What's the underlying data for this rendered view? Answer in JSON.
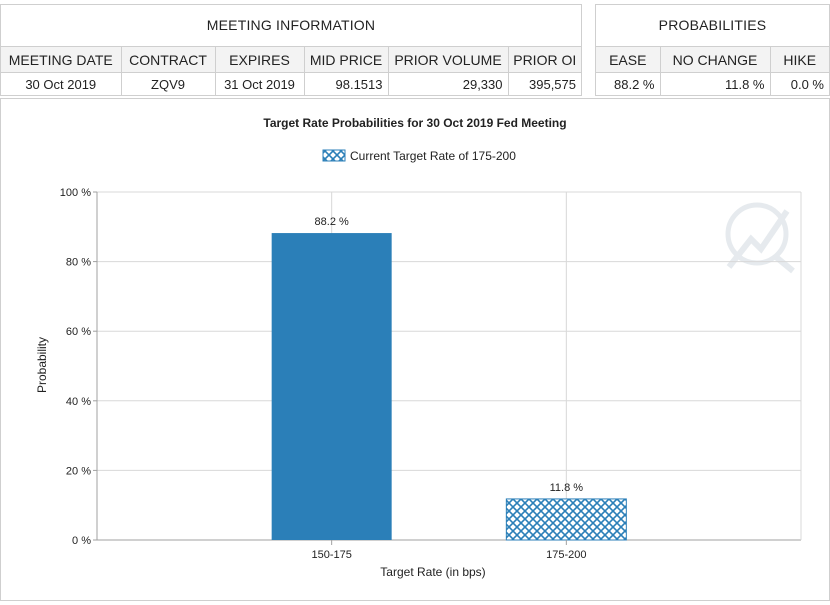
{
  "meeting_info": {
    "title": "MEETING INFORMATION",
    "headers": [
      "MEETING DATE",
      "CONTRACT",
      "EXPIRES",
      "MID PRICE",
      "PRIOR VOLUME",
      "PRIOR OI"
    ],
    "row": [
      "30 Oct 2019",
      "ZQV9",
      "31 Oct 2019",
      "98.1513",
      "29,330",
      "395,575"
    ]
  },
  "probabilities": {
    "title": "PROBABILITIES",
    "headers": [
      "EASE",
      "NO CHANGE",
      "HIKE"
    ],
    "row": [
      "88.2 %",
      "11.8 %",
      "0.0 %"
    ]
  },
  "colors": {
    "bar_fill": "#2b7fb8",
    "hatch_line": "#2b7fb8",
    "grid": "#d8d8d8",
    "axis": "#a0a0a0"
  },
  "chart_data": {
    "type": "bar",
    "title": "Target Rate Probabilities for 30 Oct 2019 Fed Meeting",
    "legend": {
      "label": "Current Target Rate of 175-200",
      "position": "top-center"
    },
    "xlabel": "Target Rate (in bps)",
    "ylabel": "Probability",
    "categories": [
      "150-175",
      "175-200"
    ],
    "values": [
      88.2,
      11.8
    ],
    "value_labels": [
      "88.2 %",
      "11.8 %"
    ],
    "highlighted_category": "175-200",
    "ylim": [
      0,
      100
    ],
    "yticks": [
      0,
      20,
      40,
      60,
      80,
      100
    ],
    "ytick_labels": [
      "0 %",
      "20 %",
      "40 %",
      "60 %",
      "80 %",
      "100 %"
    ],
    "grid": true
  }
}
